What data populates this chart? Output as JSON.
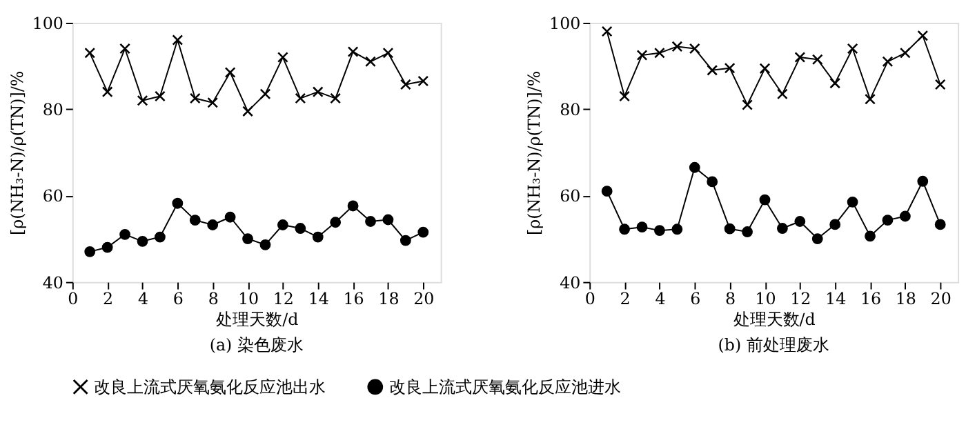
{
  "chart_data": [
    {
      "type": "line",
      "title": "(a) 染色废水",
      "xlabel": "处理天数/d",
      "ylabel": "[ρ(NH₃-N)/ρ(TN)]/%",
      "x": [
        1,
        2,
        3,
        4,
        5,
        6,
        7,
        8,
        9,
        10,
        11,
        12,
        13,
        14,
        15,
        16,
        17,
        18,
        19,
        20
      ],
      "xlim": [
        0,
        21
      ],
      "xticks": [
        0,
        2,
        4,
        6,
        8,
        10,
        12,
        14,
        16,
        18,
        20
      ],
      "ylim": [
        40,
        100
      ],
      "yticks": [
        40,
        60,
        80,
        100
      ],
      "grid": false,
      "legend": "bottom",
      "line_style": "solid",
      "series": [
        {
          "name": "改良上流式厌氧氨化反应池出水",
          "color": "#000000",
          "marker": "cross",
          "values": [
            93,
            84,
            94,
            82,
            83,
            96,
            82.5,
            81.5,
            88.5,
            79.5,
            83.5,
            92,
            82.5,
            84,
            82.5,
            93.3,
            91,
            93,
            85.7,
            86.5
          ]
        },
        {
          "name": "改良上流式厌氧氨化反应池进水",
          "color": "#000000",
          "marker": "circle",
          "values": [
            47,
            48,
            51,
            49.4,
            50.4,
            58.2,
            54.3,
            53.2,
            55,
            50,
            48.6,
            53.2,
            52.4,
            50.4,
            53.8,
            57.6,
            54,
            54.4,
            49.6,
            51.5
          ]
        }
      ]
    },
    {
      "type": "line",
      "title": "(b) 前处理废水",
      "xlabel": "处理天数/d",
      "ylabel": "[ρ(NH₃-N)/ρ(TN)]/%",
      "x": [
        1,
        2,
        3,
        4,
        5,
        6,
        7,
        8,
        9,
        10,
        11,
        12,
        13,
        14,
        15,
        16,
        17,
        18,
        19,
        20
      ],
      "xlim": [
        0,
        21
      ],
      "xticks": [
        0,
        2,
        4,
        6,
        8,
        10,
        12,
        14,
        16,
        18,
        20
      ],
      "ylim": [
        40,
        100
      ],
      "yticks": [
        40,
        60,
        80,
        100
      ],
      "grid": false,
      "legend": "bottom",
      "line_style": "solid",
      "series": [
        {
          "name": "改良上流式厌氧氨化反应池出水",
          "color": "#000000",
          "marker": "cross",
          "values": [
            98,
            83,
            92.5,
            93,
            94.5,
            94,
            89,
            89.5,
            81,
            89.4,
            83.5,
            92,
            91.5,
            86,
            94,
            82.3,
            91,
            93,
            97,
            85.7
          ]
        },
        {
          "name": "改良上流式厌氧氨化反应池进水",
          "color": "#000000",
          "marker": "circle",
          "values": [
            61,
            52.2,
            52.7,
            51.9,
            52.2,
            66.5,
            63.2,
            52.3,
            51.6,
            59,
            52.4,
            54,
            50,
            53.3,
            58.5,
            50.6,
            54.3,
            55.2,
            63.3,
            53.3
          ]
        }
      ]
    }
  ]
}
